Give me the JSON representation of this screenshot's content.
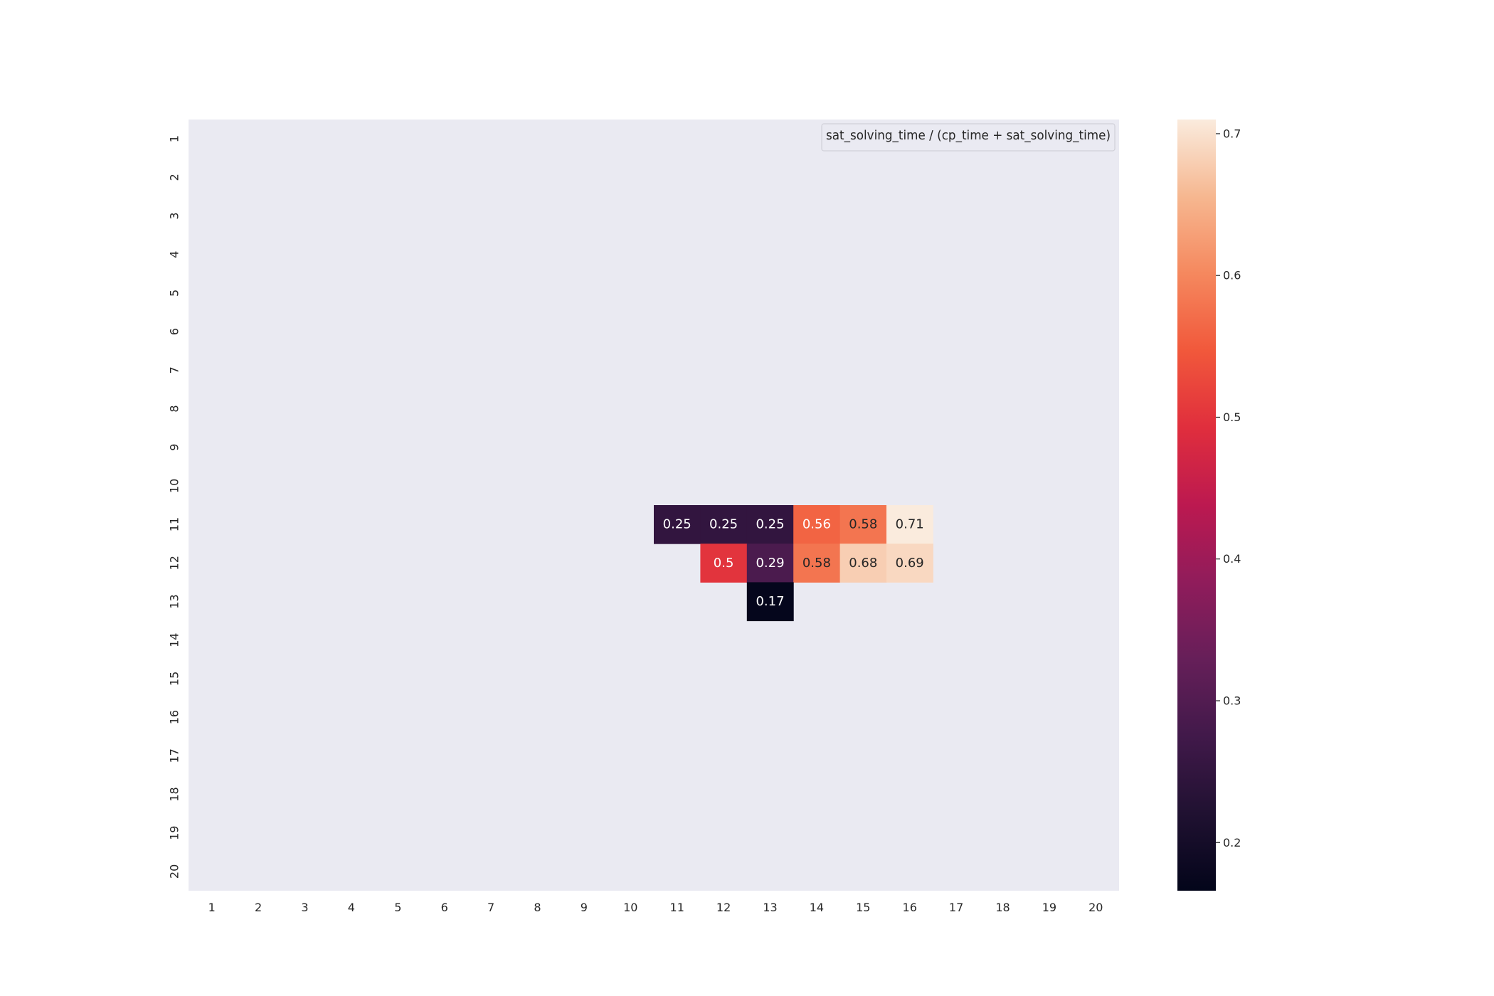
{
  "chart_data": {
    "type": "heatmap",
    "title": "",
    "xlabel": "",
    "ylabel": "",
    "x_categories": [
      "1",
      "2",
      "3",
      "4",
      "5",
      "6",
      "7",
      "8",
      "9",
      "10",
      "11",
      "12",
      "13",
      "14",
      "15",
      "16",
      "17",
      "18",
      "19",
      "20"
    ],
    "y_categories": [
      "1",
      "2",
      "3",
      "4",
      "5",
      "6",
      "7",
      "8",
      "9",
      "10",
      "11",
      "12",
      "13",
      "14",
      "15",
      "16",
      "17",
      "18",
      "19",
      "20"
    ],
    "cells": [
      {
        "x": "11",
        "y": "11",
        "value": 0.25,
        "label": "0.25"
      },
      {
        "x": "12",
        "y": "11",
        "value": 0.25,
        "label": "0.25"
      },
      {
        "x": "13",
        "y": "11",
        "value": 0.25,
        "label": "0.25"
      },
      {
        "x": "14",
        "y": "11",
        "value": 0.56,
        "label": "0.56"
      },
      {
        "x": "15",
        "y": "11",
        "value": 0.58,
        "label": "0.58"
      },
      {
        "x": "16",
        "y": "11",
        "value": 0.71,
        "label": "0.71"
      },
      {
        "x": "12",
        "y": "12",
        "value": 0.5,
        "label": "0.5"
      },
      {
        "x": "13",
        "y": "12",
        "value": 0.29,
        "label": "0.29"
      },
      {
        "x": "14",
        "y": "12",
        "value": 0.58,
        "label": "0.58"
      },
      {
        "x": "15",
        "y": "12",
        "value": 0.68,
        "label": "0.68"
      },
      {
        "x": "16",
        "y": "12",
        "value": 0.69,
        "label": "0.69"
      },
      {
        "x": "13",
        "y": "13",
        "value": 0.17,
        "label": "0.17"
      }
    ],
    "legend": {
      "label": "sat_solving_time / (cp_time + sat_solving_time)",
      "position": "top-right"
    },
    "colorbar": {
      "range": [
        0.166,
        0.71
      ],
      "ticks": [
        0.2,
        0.3,
        0.4,
        0.5,
        0.6,
        0.7
      ],
      "tick_labels": [
        "0.2",
        "0.3",
        "0.4",
        "0.5",
        "0.6",
        "0.7"
      ],
      "colormap": "rocket"
    },
    "grid": false,
    "colors": {
      "background": "#eaeaf2",
      "text_dark": "#262626",
      "text_light": "#ffffff"
    }
  }
}
